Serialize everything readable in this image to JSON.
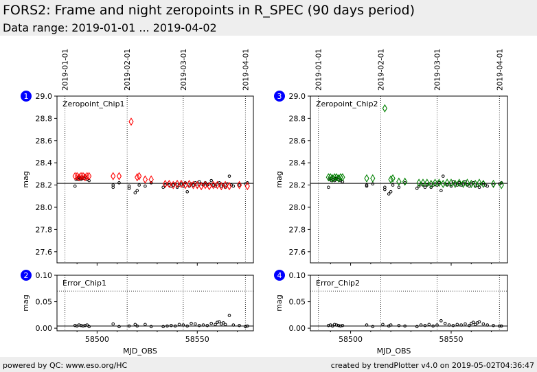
{
  "header": {
    "title": "FORS2: Frame and night zeropoints in R_SPEC (90 days period)",
    "subtitle": "Data range: 2019-01-01 ... 2019-04-02"
  },
  "footer": {
    "left": "powered by QC: www.eso.org/HC",
    "right": "created by trendPlotter v4.0 on 2019-05-02T04:36:47"
  },
  "colors": {
    "chip1": "#ff0000",
    "chip2": "#008000",
    "frame": "#000000",
    "badge": "#0000ff"
  },
  "date_markers": [
    {
      "label": "2019-01-01",
      "mjd": 58484
    },
    {
      "label": "2019-02-01",
      "mjd": 58515
    },
    {
      "label": "2019-03-01",
      "mjd": 58543
    },
    {
      "label": "2019-04-01",
      "mjd": 58574
    }
  ],
  "xaxis": {
    "label": "MJD_OBS",
    "range": [
      58480,
      58578
    ],
    "ticks": [
      58500,
      58550
    ]
  },
  "chart_data": [
    {
      "id": 1,
      "badge": "1",
      "type": "scatter",
      "annotation": "Zeropoint_Chip1",
      "ylabel": "mag",
      "ylim": [
        27.5,
        29.0
      ],
      "yticks": [
        27.6,
        27.8,
        28.0,
        28.2,
        28.4,
        28.6,
        28.8,
        29.0
      ],
      "reference_line": 28.215,
      "night_points": {
        "x": [
          58489,
          58489.5,
          58490,
          58490.5,
          58491,
          58491.5,
          58492,
          58492.5,
          58493,
          58493.5,
          58494,
          58495,
          58496,
          58508,
          58508,
          58511,
          58516,
          58516,
          58519,
          58520,
          58521,
          58524,
          58527,
          58533,
          58534,
          58535,
          58536,
          58537,
          58538,
          58539,
          58540,
          58541,
          58542,
          58543,
          58544,
          58545,
          58546,
          58547,
          58548,
          58549,
          58550,
          58551,
          58552,
          58553,
          58554,
          58555,
          58556,
          58557,
          58558,
          58559,
          58560,
          58561,
          58562,
          58563,
          58564,
          58565,
          58566,
          58567,
          58568,
          58571,
          58574,
          58575
        ],
        "y": [
          28.19,
          28.25,
          28.26,
          28.25,
          28.27,
          28.26,
          28.25,
          28.26,
          28.27,
          28.26,
          28.28,
          28.25,
          28.24,
          28.18,
          28.2,
          28.22,
          28.17,
          28.19,
          28.13,
          28.15,
          28.2,
          28.19,
          28.22,
          28.18,
          28.2,
          28.21,
          28.2,
          28.19,
          28.2,
          28.21,
          28.18,
          28.2,
          28.21,
          28.19,
          28.22,
          28.14,
          28.19,
          28.21,
          28.2,
          28.22,
          28.19,
          28.23,
          28.21,
          28.2,
          28.22,
          28.2,
          28.21,
          28.24,
          28.2,
          28.19,
          28.21,
          28.22,
          28.19,
          28.2,
          28.18,
          28.21,
          28.28,
          28.2,
          28.19,
          28.2,
          28.21,
          28.22
        ]
      },
      "frame_points": {
        "x": [
          58489,
          58490,
          58491,
          58492,
          58493,
          58494,
          58495,
          58496,
          58508,
          58511,
          58520,
          58521,
          58524,
          58527,
          58534,
          58536,
          58538,
          58540,
          58542,
          58544,
          58546,
          58548,
          58550,
          58552,
          58554,
          58556,
          58558,
          58560,
          58562,
          58564,
          58566,
          58571,
          58575
        ],
        "y": [
          28.28,
          28.28,
          28.27,
          28.28,
          28.28,
          28.27,
          28.28,
          28.28,
          28.28,
          28.28,
          28.27,
          28.28,
          28.25,
          28.25,
          28.21,
          28.21,
          28.2,
          28.21,
          28.21,
          28.2,
          28.21,
          28.2,
          28.2,
          28.19,
          28.2,
          28.19,
          28.2,
          28.2,
          28.19,
          28.2,
          28.19,
          28.2,
          28.19
        ],
        "outlier": {
          "x": 58517,
          "y": 28.77
        }
      }
    },
    {
      "id": 2,
      "badge": "2",
      "type": "scatter",
      "annotation": "Error_Chip1",
      "ylabel": "mag",
      "ylim": [
        -0.005,
        0.1
      ],
      "yticks": [
        0.0,
        0.05,
        0.1
      ],
      "ytick_labels": [
        "0.00",
        "0.05",
        "0.10"
      ],
      "reference_line": 0.004,
      "dotted_line": 0.07,
      "points": {
        "x": [
          58489,
          58490,
          58491,
          58492,
          58493,
          58494,
          58495,
          58496,
          58508,
          58511,
          58516,
          58519,
          58520,
          58524,
          58527,
          58533,
          58535,
          58537,
          58539,
          58541,
          58543,
          58545,
          58547,
          58549,
          58551,
          58553,
          58555,
          58557,
          58559,
          58560,
          58561,
          58562,
          58563,
          58564,
          58566,
          58568,
          58571,
          58574,
          58575
        ],
        "y": [
          0.005,
          0.004,
          0.006,
          0.005,
          0.004,
          0.005,
          0.006,
          0.003,
          0.008,
          0.003,
          0.004,
          0.007,
          0.004,
          0.007,
          0.003,
          0.003,
          0.004,
          0.005,
          0.004,
          0.007,
          0.006,
          0.004,
          0.009,
          0.008,
          0.005,
          0.006,
          0.005,
          0.009,
          0.007,
          0.011,
          0.012,
          0.008,
          0.01,
          0.007,
          0.024,
          0.006,
          0.005,
          0.003,
          0.004
        ]
      }
    },
    {
      "id": 3,
      "badge": "3",
      "type": "scatter",
      "annotation": "Zeropoint_Chip2",
      "ylabel": "mag",
      "ylim": [
        27.5,
        29.0
      ],
      "yticks": [
        27.6,
        27.8,
        28.0,
        28.2,
        28.4,
        28.6,
        28.8,
        29.0
      ],
      "reference_line": 28.215,
      "night_points": {
        "x": [
          58489,
          58489.5,
          58490,
          58490.5,
          58491,
          58491.5,
          58492,
          58492.5,
          58493,
          58493.5,
          58494,
          58495,
          58496,
          58508,
          58508,
          58511,
          58517,
          58517,
          58519,
          58520,
          58521,
          58524,
          58527,
          58533,
          58534,
          58535,
          58536,
          58537,
          58538,
          58539,
          58540,
          58541,
          58542,
          58543,
          58544,
          58545,
          58546,
          58547,
          58548,
          58549,
          58550,
          58551,
          58552,
          58553,
          58554,
          58555,
          58556,
          58557,
          58558,
          58559,
          58560,
          58561,
          58562,
          58563,
          58564,
          58565,
          58566,
          58567,
          58568,
          58571,
          58574,
          58575
        ],
        "y": [
          28.18,
          28.25,
          28.26,
          28.24,
          28.27,
          28.25,
          28.24,
          28.26,
          28.26,
          28.25,
          28.27,
          28.24,
          28.23,
          28.19,
          28.2,
          28.21,
          28.18,
          28.16,
          28.12,
          28.14,
          28.2,
          28.18,
          28.22,
          28.17,
          28.19,
          28.21,
          28.2,
          28.18,
          28.2,
          28.21,
          28.18,
          28.2,
          28.21,
          28.2,
          28.22,
          28.15,
          28.28,
          28.21,
          28.2,
          28.21,
          28.19,
          28.23,
          28.21,
          28.2,
          28.22,
          28.2,
          28.21,
          28.23,
          28.2,
          28.19,
          28.21,
          28.22,
          28.19,
          28.2,
          28.18,
          28.21,
          28.22,
          28.2,
          28.19,
          28.2,
          28.21,
          28.22
        ]
      },
      "frame_points": {
        "x": [
          58489,
          58490,
          58491,
          58492,
          58493,
          58494,
          58495,
          58496,
          58508,
          58511,
          58520,
          58521,
          58524,
          58527,
          58534,
          58536,
          58538,
          58540,
          58542,
          58544,
          58546,
          58548,
          58550,
          58552,
          58554,
          58556,
          58558,
          58560,
          58562,
          58564,
          58566,
          58571,
          58575
        ],
        "y": [
          28.27,
          28.27,
          28.26,
          28.27,
          28.27,
          28.26,
          28.27,
          28.27,
          28.26,
          28.26,
          28.25,
          28.26,
          28.23,
          28.23,
          28.22,
          28.22,
          28.22,
          28.21,
          28.22,
          28.22,
          28.21,
          28.22,
          28.22,
          28.21,
          28.22,
          28.21,
          28.22,
          28.21,
          28.21,
          28.22,
          28.21,
          28.21,
          28.2
        ],
        "outlier": {
          "x": 58517,
          "y": 28.89
        }
      }
    },
    {
      "id": 4,
      "badge": "4",
      "type": "scatter",
      "annotation": "Error_Chip2",
      "ylabel": "mag",
      "ylim": [
        -0.005,
        0.1
      ],
      "yticks": [
        0.0,
        0.05,
        0.1
      ],
      "ytick_labels": [
        "0.00",
        "0.05",
        "0.10"
      ],
      "reference_line": 0.004,
      "dotted_line": 0.07,
      "points": {
        "x": [
          58489,
          58490,
          58491,
          58492,
          58493,
          58494,
          58495,
          58496,
          58508,
          58511,
          58516,
          58519,
          58520,
          58524,
          58527,
          58533,
          58535,
          58537,
          58539,
          58541,
          58543,
          58545,
          58547,
          58549,
          58551,
          58553,
          58555,
          58557,
          58559,
          58560,
          58561,
          58562,
          58563,
          58564,
          58566,
          58568,
          58571,
          58574,
          58575
        ],
        "y": [
          0.005,
          0.006,
          0.004,
          0.007,
          0.006,
          0.005,
          0.004,
          0.005,
          0.006,
          0.003,
          0.007,
          0.004,
          0.006,
          0.005,
          0.004,
          0.003,
          0.006,
          0.005,
          0.007,
          0.004,
          0.006,
          0.014,
          0.009,
          0.006,
          0.005,
          0.007,
          0.006,
          0.008,
          0.005,
          0.009,
          0.011,
          0.007,
          0.01,
          0.012,
          0.008,
          0.006,
          0.005,
          0.004,
          0.004
        ]
      }
    }
  ]
}
